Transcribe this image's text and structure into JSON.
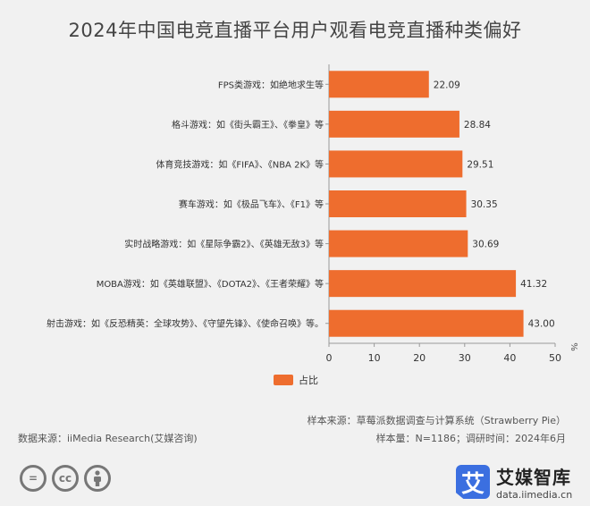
{
  "title": "2024年中国电竞直播平台用户观看电竞直播种类偏好",
  "chart_data": {
    "type": "bar",
    "orientation": "horizontal",
    "categories": [
      "FPS类游戏：如绝地求生等",
      "格斗游戏：如《街头霸王》、《拳皇》等",
      "体育竞技游戏：如《FIFA》、《NBA 2K》等",
      "赛车游戏：如《极品飞车》、《F1》等",
      "实时战略游戏：如《星际争霸2》、《英雄无敌3》等",
      "MOBA游戏：如《英雄联盟》、《DOTA2》、《王者荣耀》等",
      "射击游戏：如《反恐精英：全球攻势》、《守望先锋》、《使命召唤》等。"
    ],
    "values": [
      22.09,
      28.84,
      29.51,
      30.35,
      30.69,
      41.32,
      43.0
    ],
    "value_labels": [
      "22.09",
      "28.84",
      "29.51",
      "30.35",
      "30.69",
      "41.32",
      "43.00"
    ],
    "xlim": [
      0,
      50
    ],
    "xticks": [
      "0",
      "10",
      "20",
      "30",
      "40",
      "50"
    ],
    "unit": "%",
    "legend": {
      "label": "占比",
      "position": "bottom"
    },
    "bar_color": "#ee6d2e",
    "grid": false
  },
  "footer": {
    "source": "数据来源：iiMedia Research(艾媒咨询)",
    "sample_source": "样本来源：草莓派数据调查与计算系统（Strawberry Pie）",
    "sample_size": "样本量：N=1186；调研时间：2024年6月"
  },
  "license_icons": [
    "=",
    "cc",
    "person"
  ],
  "brand": {
    "name": "艾媒智库",
    "url": "data.iimedia.cn",
    "logo_char": "艾",
    "color": "#3b6fe0"
  }
}
